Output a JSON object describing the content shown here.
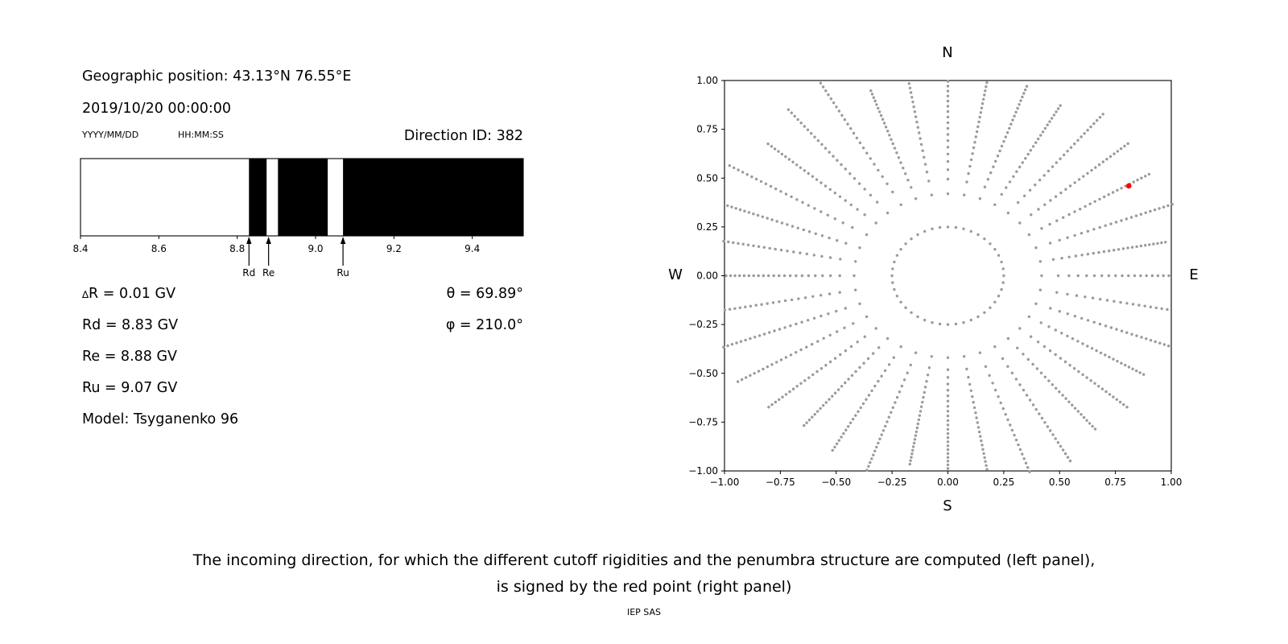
{
  "header": {
    "geo_position": "Geographic position: 43.13°N 76.55°E",
    "datetime": "2019/10/20 00:00:00",
    "date_format_hint": "YYYY/MM/DD",
    "time_format_hint": "HH:MM:SS",
    "direction_id": "Direction ID: 382"
  },
  "parameters": {
    "delta_symbol": "∆",
    "delta_r_rest": "R = 0.01 GV",
    "rd": "Rd = 8.83 GV",
    "re": "Re = 8.88 GV",
    "ru": "Ru = 9.07 GV",
    "model": "Model: Tsyganenko 96",
    "theta": "θ = 69.89°",
    "phi": "φ = 210.0°"
  },
  "caption": {
    "line1": "The incoming direction, for which the different cutoff rigidities and the penumbra structure are computed (left panel),",
    "line2": "is signed by the red point (right panel)",
    "credit": "IEP SAS"
  },
  "chart_data": [
    {
      "type": "bar",
      "name": "penumbra-structure",
      "xlim": [
        8.4,
        9.53
      ],
      "x_ticks": [
        8.4,
        8.6,
        8.8,
        9.0,
        9.2,
        9.4
      ],
      "x_tick_decimals": 1,
      "bar_color": "#000000",
      "background": "#ffffff",
      "forbidden_segments_gv": [
        [
          8.83,
          8.875
        ],
        [
          8.904,
          9.031
        ],
        [
          9.07,
          9.53
        ]
      ],
      "markers": [
        {
          "label": "Rd",
          "x": 8.83
        },
        {
          "label": "Re",
          "x": 8.88
        },
        {
          "label": "Ru",
          "x": 9.07
        }
      ]
    },
    {
      "type": "scatter",
      "name": "asymptotic-directions",
      "xlim": [
        -1.0,
        1.0
      ],
      "ylim": [
        -1.0,
        1.0
      ],
      "x_ticks": [
        -1.0,
        -0.75,
        -0.5,
        -0.25,
        0.0,
        0.25,
        0.5,
        0.75,
        1.0
      ],
      "y_ticks": [
        -1.0,
        -0.75,
        -0.5,
        -0.25,
        0.0,
        0.25,
        0.5,
        0.75,
        1.0
      ],
      "tick_decimals": 2,
      "compass": {
        "top": "N",
        "bottom": "S",
        "left": "W",
        "right": "E"
      },
      "dot_color": "#9a9a9a",
      "inner_ring": {
        "radius": 0.25,
        "dots": 44
      },
      "spokes": {
        "count": 36,
        "r_start": 0.42,
        "r_end_min": 0.98,
        "r_end_max": 1.14,
        "dots_per_spoke": 24,
        "radial_power": 0.72
      },
      "red_point": {
        "x": 0.81,
        "y": 0.46,
        "color": "#ff0000"
      }
    }
  ]
}
